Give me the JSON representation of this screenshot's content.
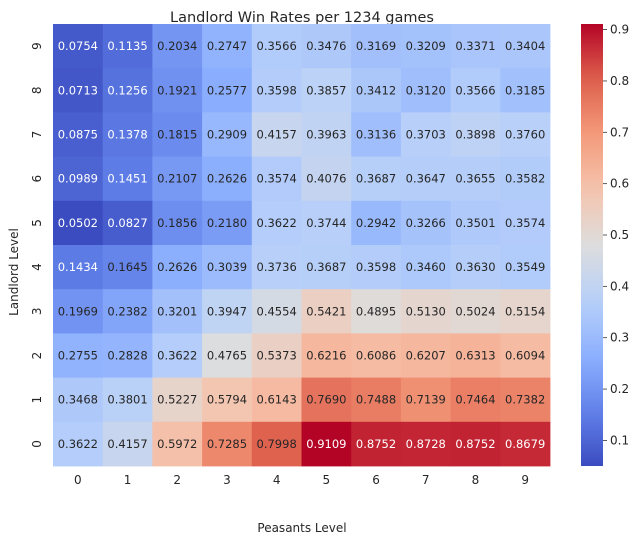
{
  "chart_data": {
    "type": "heatmap",
    "title": "Landlord Win Rates per 1234 games",
    "xlabel": "Peasants Level",
    "ylabel": "Landlord Level",
    "x": [
      "0",
      "1",
      "2",
      "3",
      "4",
      "5",
      "6",
      "7",
      "8",
      "9"
    ],
    "y": [
      "9",
      "8",
      "7",
      "6",
      "5",
      "4",
      "3",
      "2",
      "1",
      "0"
    ],
    "values": [
      [
        0.0754,
        0.1135,
        0.2034,
        0.2747,
        0.3566,
        0.3476,
        0.3169,
        0.3209,
        0.3371,
        0.3404
      ],
      [
        0.0713,
        0.1256,
        0.1921,
        0.2577,
        0.3598,
        0.3857,
        0.3412,
        0.312,
        0.3566,
        0.3185
      ],
      [
        0.0875,
        0.1378,
        0.1815,
        0.2909,
        0.4157,
        0.3963,
        0.3136,
        0.3703,
        0.3898,
        0.376
      ],
      [
        0.0989,
        0.1451,
        0.2107,
        0.2626,
        0.3574,
        0.4076,
        0.3687,
        0.3647,
        0.3655,
        0.3582
      ],
      [
        0.0502,
        0.0827,
        0.1856,
        0.218,
        0.3622,
        0.3744,
        0.2942,
        0.3266,
        0.3501,
        0.3574
      ],
      [
        0.1434,
        0.1645,
        0.2626,
        0.3039,
        0.3736,
        0.3687,
        0.3598,
        0.346,
        0.363,
        0.3549
      ],
      [
        0.1969,
        0.2382,
        0.3201,
        0.3947,
        0.4554,
        0.5421,
        0.4895,
        0.513,
        0.5024,
        0.5154
      ],
      [
        0.2755,
        0.2828,
        0.3622,
        0.4765,
        0.5373,
        0.6216,
        0.6086,
        0.6207,
        0.6313,
        0.6094
      ],
      [
        0.3468,
        0.3801,
        0.5227,
        0.5794,
        0.6143,
        0.769,
        0.7488,
        0.7139,
        0.7464,
        0.7382
      ],
      [
        0.3622,
        0.4157,
        0.5972,
        0.7285,
        0.7998,
        0.9109,
        0.8752,
        0.8728,
        0.8752,
        0.8679
      ]
    ],
    "value_format": "4 decimals",
    "colormap": "coolwarm",
    "colorbar": {
      "min": 0.0502,
      "max": 0.9109,
      "ticks": [
        "0.1",
        "0.2",
        "0.3",
        "0.4",
        "0.5",
        "0.6",
        "0.7",
        "0.8",
        "0.9"
      ]
    },
    "legend_placement": "right colorbar",
    "grid": false
  }
}
